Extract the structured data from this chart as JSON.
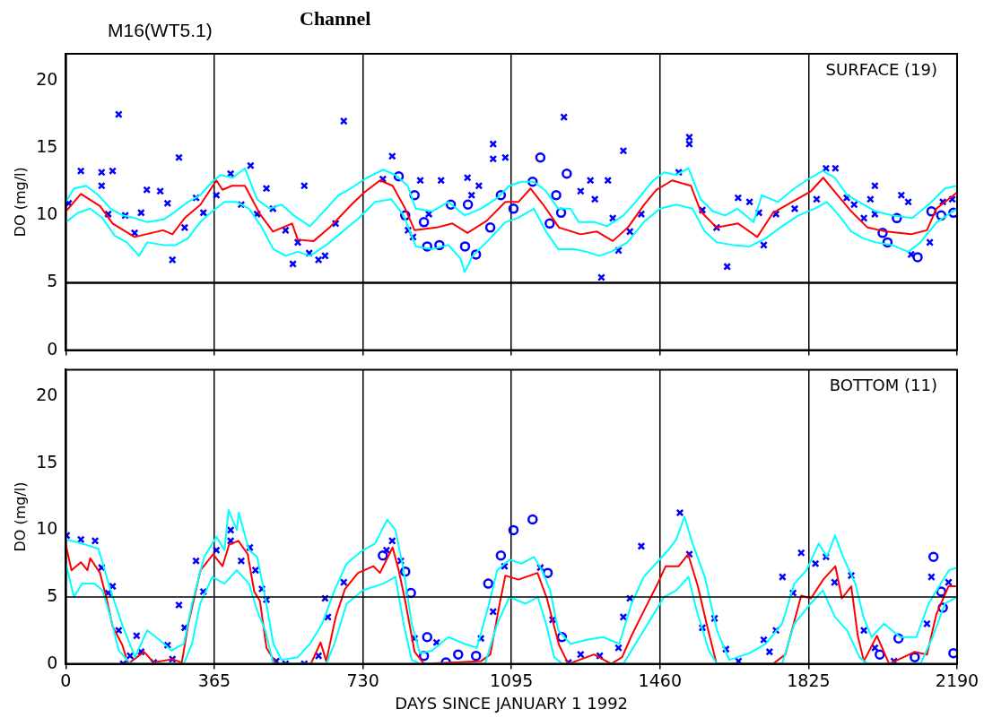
{
  "chart_data": [
    {
      "type": "line",
      "title": "M16(WT5.1)",
      "subtitle": "Channel",
      "ylabel": "DO (mg/l)",
      "annotations": [
        "SURFACE (19)"
      ],
      "xlim": [
        0,
        2190
      ],
      "xticks": [
        0,
        365,
        730,
        1095,
        1460,
        1825,
        2190
      ],
      "ylim": [
        0,
        22
      ],
      "yticks": [
        0,
        5,
        10,
        15,
        20
      ],
      "grid": "x",
      "tick_labels": "y",
      "legend": false,
      "ref_lines": [
        {
          "axis": "y",
          "value": 5,
          "color": "#000000"
        }
      ],
      "series": [
        {
          "type": "line",
          "color": "#00ffff",
          "marker": "none",
          "x": [
            0,
            20,
            50,
            80,
            110,
            140,
            170,
            200,
            240,
            270,
            300,
            330,
            360,
            380,
            410,
            440,
            470,
            500,
            530,
            560,
            600,
            640,
            670,
            700,
            740,
            780,
            810,
            840,
            860,
            900,
            940,
            980,
            1020,
            1060,
            1090,
            1120,
            1150,
            1180,
            1210,
            1240,
            1260,
            1300,
            1330,
            1370,
            1400,
            1440,
            1470,
            1500,
            1530,
            1560,
            1590,
            1620,
            1650,
            1690,
            1710,
            1750,
            1790,
            1830,
            1860,
            1890,
            1920,
            1950,
            1990,
            2030,
            2080,
            2120,
            2160,
            2190
          ],
          "values": [
            11.0,
            12.0,
            12.2,
            11.5,
            10.5,
            10.0,
            9.8,
            9.5,
            9.7,
            10.3,
            11.0,
            11.5,
            12.5,
            13.0,
            12.8,
            13.5,
            11.2,
            10.5,
            10.8,
            10.0,
            9.2,
            10.5,
            11.5,
            12.0,
            12.8,
            13.4,
            13.0,
            12.2,
            10.5,
            10.3,
            11.0,
            10.0,
            10.5,
            11.3,
            12.2,
            12.5,
            12.5,
            11.8,
            10.5,
            10.5,
            9.5,
            9.5,
            9.2,
            10.0,
            11.0,
            12.5,
            13.2,
            13.0,
            13.5,
            11.2,
            10.3,
            10.0,
            10.5,
            9.5,
            11.5,
            11.0,
            12.0,
            12.8,
            13.3,
            12.8,
            11.5,
            11.0,
            10.3,
            10.0,
            9.8,
            10.8,
            12.0,
            12.2
          ]
        },
        {
          "type": "line",
          "color": "#00ffff",
          "marker": "none",
          "x": [
            0,
            30,
            60,
            90,
            120,
            150,
            180,
            200,
            240,
            270,
            300,
            330,
            360,
            390,
            420,
            450,
            480,
            510,
            540,
            570,
            600,
            640,
            680,
            720,
            760,
            800,
            830,
            860,
            900,
            940,
            970,
            980,
            1000,
            1040,
            1080,
            1110,
            1150,
            1180,
            1210,
            1250,
            1280,
            1310,
            1340,
            1380,
            1420,
            1460,
            1500,
            1540,
            1570,
            1600,
            1640,
            1680,
            1720,
            1760,
            1800,
            1840,
            1870,
            1900,
            1930,
            1960,
            1990,
            2030,
            2070,
            2100,
            2140,
            2190
          ],
          "values": [
            9.5,
            10.2,
            10.5,
            9.8,
            8.5,
            8.0,
            7.0,
            8.0,
            7.8,
            7.8,
            8.3,
            9.5,
            10.3,
            11.0,
            11.0,
            10.5,
            9.2,
            7.5,
            7.0,
            7.3,
            7.0,
            7.8,
            8.8,
            9.8,
            11.0,
            11.2,
            10.0,
            7.7,
            7.5,
            7.8,
            6.8,
            5.8,
            7.0,
            8.2,
            9.5,
            9.8,
            10.5,
            8.8,
            7.5,
            7.5,
            7.3,
            7.0,
            7.3,
            8.0,
            9.5,
            10.5,
            10.8,
            10.5,
            8.8,
            8.0,
            7.8,
            7.7,
            8.3,
            9.2,
            10.0,
            10.5,
            11.0,
            10.0,
            8.8,
            8.3,
            8.0,
            7.8,
            7.3,
            8.0,
            9.5,
            10.5
          ]
        },
        {
          "type": "line",
          "color": "#ff0000",
          "marker": "none",
          "x": [
            0,
            37,
            84,
            115,
            169,
            239,
            262,
            292,
            331,
            370,
            385,
            408,
            440,
            477,
            509,
            556,
            570,
            609,
            648,
            702,
            733,
            772,
            803,
            834,
            857,
            911,
            950,
            987,
            1034,
            1080,
            1112,
            1142,
            1173,
            1212,
            1265,
            1305,
            1344,
            1381,
            1421,
            1451,
            1490,
            1536,
            1560,
            1599,
            1652,
            1699,
            1738,
            1784,
            1831,
            1861,
            1891,
            1930,
            1970,
            2016,
            2077,
            2116,
            2139,
            2190
          ],
          "values": [
            10.3,
            11.6,
            10.7,
            9.4,
            8.4,
            8.9,
            8.6,
            9.8,
            10.8,
            12.6,
            11.9,
            12.2,
            12.2,
            10.1,
            8.8,
            9.4,
            8.2,
            8.1,
            9.1,
            10.8,
            11.7,
            12.6,
            12.2,
            10.5,
            8.9,
            9.1,
            9.4,
            8.7,
            9.6,
            11.0,
            11.0,
            12.0,
            10.8,
            9.1,
            8.6,
            8.8,
            8.1,
            9.1,
            10.8,
            11.9,
            12.6,
            12.2,
            10.3,
            9.1,
            9.4,
            8.4,
            10.2,
            11.0,
            11.8,
            12.8,
            11.7,
            10.3,
            9.1,
            8.8,
            8.6,
            8.9,
            10.5,
            11.7
          ]
        },
        {
          "type": "scatter",
          "color": "#0000ff",
          "marker": "cross",
          "x": [
            7,
            37,
            88,
            88,
            115,
            130,
            104,
            146,
            185,
            199,
            232,
            250,
            169,
            262,
            278,
            292,
            320,
            338,
            370,
            405,
            431,
            454,
            470,
            493,
            509,
            540,
            558,
            570,
            586,
            598,
            621,
            637,
            663,
            683,
            779,
            802,
            841,
            853,
            871,
            892,
            922,
            987,
            997,
            1015,
            1050,
            1050,
            1080,
            1224,
            1370,
            1265,
            1289,
            1300,
            1332,
            1344,
            1316,
            1358,
            1386,
            1414,
            1506,
            1532,
            1532,
            1564,
            1599,
            1625,
            1652,
            1680,
            1703,
            1715,
            1745,
            1791,
            1845,
            1868,
            1891,
            1919,
            1937,
            1961,
            1977,
            1988,
            1988,
            2053,
            2070,
            2077,
            2123,
            2155,
            2178
          ],
          "values": [
            10.9,
            13.3,
            13.2,
            12.2,
            13.3,
            17.5,
            10.1,
            10.0,
            10.2,
            11.9,
            11.8,
            10.9,
            8.7,
            6.7,
            14.3,
            9.1,
            11.3,
            10.2,
            11.5,
            13.1,
            10.8,
            13.7,
            10.1,
            12.0,
            10.5,
            8.9,
            6.4,
            8.0,
            12.2,
            7.2,
            6.7,
            7.0,
            9.4,
            17.0,
            12.7,
            14.4,
            8.9,
            8.4,
            12.6,
            10.1,
            12.6,
            12.8,
            11.5,
            12.2,
            15.3,
            14.2,
            14.3,
            17.3,
            14.8,
            11.8,
            12.6,
            11.2,
            12.6,
            9.8,
            5.4,
            7.4,
            8.8,
            10.1,
            13.2,
            15.8,
            15.3,
            10.4,
            9.1,
            6.2,
            11.3,
            11.0,
            10.2,
            7.8,
            10.1,
            10.5,
            11.2,
            13.5,
            13.5,
            11.3,
            10.8,
            9.8,
            11.2,
            12.2,
            10.1,
            11.5,
            11.0,
            7.1,
            8.0,
            11.0,
            11.2
          ]
        },
        {
          "type": "scatter",
          "color": "#0000ff",
          "marker": "circle",
          "x": [
            818,
            834,
            857,
            880,
            888,
            918,
            946,
            981,
            988,
            1008,
            1043,
            1069,
            1100,
            1166,
            1231,
            1147,
            1205,
            1189,
            1217,
            2007,
            2019,
            2042,
            2093,
            2127,
            2151,
            2181
          ],
          "values": [
            12.9,
            10.0,
            11.5,
            9.5,
            7.7,
            7.8,
            10.8,
            7.7,
            10.8,
            7.1,
            9.1,
            11.5,
            10.5,
            14.3,
            13.1,
            12.5,
            11.5,
            9.4,
            10.2,
            8.7,
            8.0,
            9.8,
            6.9,
            10.3,
            10.0,
            10.2
          ]
        }
      ]
    },
    {
      "type": "line",
      "xlabel": "DAYS SINCE JANUARY 1 1992",
      "ylabel": "DO (mg/l)",
      "annotations": [
        "BOTTOM (11)"
      ],
      "xlim": [
        0,
        2190
      ],
      "xticks": [
        0,
        365,
        730,
        1095,
        1460,
        1825,
        2190
      ],
      "ylim": [
        0,
        22
      ],
      "yticks": [
        0,
        5,
        10,
        15,
        20
      ],
      "grid": "x",
      "legend": false,
      "ref_lines": [
        {
          "axis": "y",
          "value": 5,
          "color": "#000000"
        }
      ],
      "series": [
        {
          "type": "line",
          "color": "#00ffff",
          "marker": "none",
          "x": [
            0,
            40,
            80,
            110,
            140,
            170,
            200,
            230,
            260,
            290,
            310,
            340,
            370,
            390,
            400,
            420,
            425,
            450,
            470,
            490,
            510,
            530,
            570,
            600,
            630,
            660,
            690,
            730,
            760,
            790,
            810,
            830,
            850,
            870,
            900,
            940,
            980,
            1010,
            1040,
            1060,
            1090,
            1120,
            1150,
            1170,
            1190,
            1210,
            1240,
            1280,
            1320,
            1360,
            1390,
            1420,
            1450,
            1480,
            1500,
            1520,
            1540,
            1570,
            1600,
            1630,
            1680,
            1720,
            1760,
            1790,
            1820,
            1850,
            1870,
            1890,
            1910,
            1940,
            1960,
            1980,
            2010,
            2050,
            2090,
            2120,
            2150,
            2170,
            2190
          ],
          "values": [
            9.3,
            9.0,
            8.6,
            5.5,
            2.8,
            0.5,
            2.5,
            1.8,
            1.0,
            1.5,
            4.5,
            8.0,
            9.5,
            8.5,
            11.5,
            10.0,
            11.3,
            8.5,
            8.0,
            5.0,
            1.5,
            0.3,
            0.5,
            1.5,
            3.0,
            5.5,
            7.5,
            8.5,
            9.0,
            10.8,
            10.0,
            7.0,
            3.0,
            0.8,
            1.0,
            2.0,
            1.5,
            1.2,
            4.5,
            7.0,
            7.8,
            7.5,
            8.0,
            7.0,
            5.5,
            2.5,
            1.5,
            1.8,
            2.0,
            1.5,
            4.5,
            6.5,
            7.5,
            8.5,
            9.3,
            11.0,
            9.0,
            6.5,
            2.5,
            0.3,
            0.8,
            1.5,
            3.0,
            6.0,
            7.0,
            9.0,
            8.0,
            9.6,
            8.0,
            6.0,
            3.5,
            2.0,
            3.0,
            2.0,
            2.0,
            4.5,
            6.0,
            7.0,
            7.2
          ]
        },
        {
          "type": "line",
          "color": "#00ffff",
          "marker": "none",
          "x": [
            0,
            20,
            40,
            70,
            90,
            110,
            130,
            160,
            290,
            310,
            330,
            360,
            390,
            420,
            450,
            470,
            490,
            510,
            640,
            660,
            690,
            730,
            780,
            810,
            830,
            850,
            870,
            1030,
            1060,
            1090,
            1130,
            1160,
            1180,
            1200,
            1220,
            1370,
            1400,
            1440,
            1470,
            1500,
            1530,
            1550,
            1580,
            1600,
            1760,
            1790,
            1830,
            1860,
            1890,
            1920,
            1950,
            1970,
            2100,
            2130,
            2160,
            2190
          ],
          "values": [
            7.5,
            5.0,
            6.0,
            6.0,
            5.5,
            3.5,
            1.0,
            0,
            0,
            1.5,
            4.5,
            6.5,
            6.0,
            7.0,
            6.0,
            4.0,
            2.5,
            0,
            0,
            1.5,
            4.5,
            5.5,
            6.0,
            6.5,
            3.0,
            0.3,
            0,
            0,
            3.0,
            5.0,
            4.5,
            5.0,
            3.0,
            0.5,
            0,
            0,
            1.5,
            3.5,
            5.0,
            5.5,
            6.5,
            4.0,
            1.0,
            0,
            0,
            3.0,
            4.5,
            5.5,
            3.5,
            2.5,
            0.5,
            0,
            0,
            2.0,
            4.5,
            5.0
          ]
        },
        {
          "type": "line",
          "color": "#ff0000",
          "marker": "none",
          "x": [
            0,
            14,
            37,
            53,
            60,
            84,
            100,
            115,
            139,
            153,
            192,
            216,
            262,
            285,
            301,
            331,
            362,
            385,
            401,
            424,
            447,
            463,
            477,
            493,
            517,
            602,
            626,
            640,
            663,
            686,
            718,
            756,
            772,
            803,
            818,
            834,
            857,
            880,
            1020,
            1043,
            1066,
            1080,
            1112,
            1159,
            1182,
            1212,
            1235,
            1298,
            1340,
            1367,
            1390,
            1421,
            1451,
            1474,
            1506,
            1529,
            1553,
            1576,
            1599,
            1738,
            1768,
            1807,
            1831,
            1861,
            1891,
            1907,
            1930,
            1946,
            1961,
            1993,
            2023,
            2086,
            2116,
            2139,
            2169,
            2190
          ],
          "values": [
            8.9,
            7.0,
            7.6,
            7.0,
            7.9,
            6.8,
            4.9,
            2.8,
            1.4,
            0,
            0.9,
            0.1,
            0.35,
            0.1,
            3.0,
            7.0,
            8.2,
            7.3,
            8.9,
            9.2,
            8.2,
            5.4,
            4.7,
            1.2,
            0,
            0,
            1.6,
            0.2,
            3.5,
            5.6,
            6.8,
            7.3,
            6.8,
            8.7,
            7.0,
            4.7,
            0.9,
            0,
            0.2,
            0.7,
            4.5,
            6.6,
            6.3,
            6.8,
            4.9,
            1.4,
            0,
            0.7,
            0,
            0.5,
            2.1,
            4.0,
            5.8,
            7.3,
            7.3,
            8.2,
            5.8,
            2.8,
            0,
            0,
            0.7,
            5.1,
            4.9,
            6.3,
            7.3,
            4.9,
            5.8,
            2.1,
            0.2,
            2.1,
            0,
            0.9,
            0.7,
            3.7,
            5.8,
            5.8
          ]
        },
        {
          "type": "scatter",
          "color": "#0000ff",
          "marker": "cross",
          "x": [
            2,
            37,
            72,
            88,
            115,
            104,
            130,
            174,
            158,
            141,
            185,
            216,
            250,
            262,
            278,
            292,
            320,
            338,
            370,
            405,
            405,
            431,
            452,
            466,
            482,
            493,
            517,
            540,
            586,
            621,
            637,
            644,
            683,
            788,
            802,
            823,
            857,
            911,
            1020,
            1050,
            1078,
            1166,
            1196,
            1414,
            1386,
            1370,
            1358,
            1312,
            1265,
            1235,
            1509,
            1532,
            1564,
            1594,
            1622,
            1653,
            1715,
            1745,
            1729,
            1761,
            1787,
            1807,
            1842,
            1868,
            1889,
            1930,
            1961,
            1988,
            2035,
            2116,
            2127,
            2169
          ],
          "values": [
            9.6,
            9.3,
            9.2,
            7.2,
            5.8,
            5.3,
            2.5,
            2.1,
            0.6,
            0,
            0.9,
            0.1,
            1.4,
            0.35,
            4.4,
            2.7,
            7.7,
            5.4,
            8.5,
            10.0,
            9.2,
            7.7,
            8.7,
            7.0,
            5.6,
            4.8,
            0.2,
            0,
            0,
            0.6,
            4.9,
            3.5,
            6.1,
            8.5,
            9.2,
            7.7,
            1.9,
            1.6,
            1.9,
            3.9,
            7.3,
            7.2,
            3.3,
            8.8,
            4.9,
            3.5,
            1.2,
            0.6,
            0.7,
            0.1,
            11.3,
            8.2,
            2.7,
            3.4,
            1.1,
            0.2,
            1.8,
            2.5,
            0.9,
            6.5,
            5.3,
            8.3,
            7.5,
            8.0,
            6.1,
            6.6,
            2.5,
            1.2,
            0.2,
            3.0,
            6.5,
            6.1
          ]
        },
        {
          "type": "scatter",
          "color": "#0000ff",
          "marker": "circle",
          "x": [
            834,
            848,
            779,
            888,
            880,
            964,
            1008,
            1038,
            1069,
            1100,
            934,
            1147,
            1184,
            1219,
            2046,
            2132,
            2151,
            2155,
            2181,
            2086,
            2000
          ],
          "values": [
            6.9,
            5.3,
            8.1,
            2.0,
            0.6,
            0.7,
            0.6,
            6.0,
            8.1,
            10.0,
            0.1,
            10.8,
            6.8,
            2.0,
            1.9,
            8.0,
            5.4,
            4.2,
            0.8,
            0.5,
            0.7
          ]
        }
      ]
    }
  ]
}
